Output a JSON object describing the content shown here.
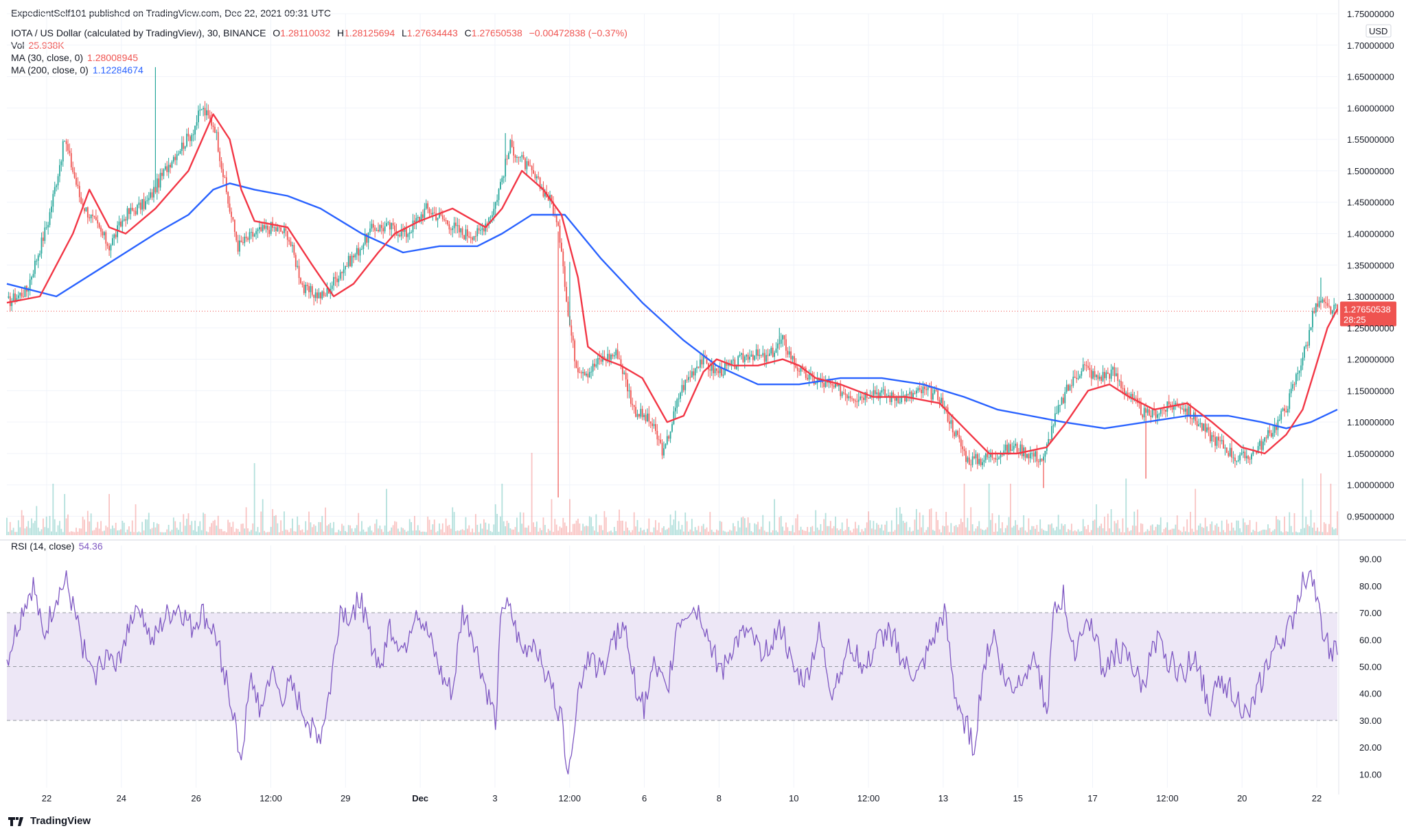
{
  "publisher": "ExpedientSelf101 published on TradingView.com, Dec 22, 2021 09:31 UTC",
  "symbol_line": {
    "name": "IOTA / US Dollar (calculated by TradingView), 30, BINANCE",
    "o_label": "O",
    "o": "1.28110032",
    "h_label": "H",
    "h": "1.28125694",
    "l_label": "L",
    "l": "1.27634443",
    "c_label": "C",
    "c": "1.27650538",
    "change": "−0.00472838 (−0.37%)"
  },
  "vol": {
    "label": "Vol",
    "value": "25.938K"
  },
  "ma30": {
    "label": "MA (30, close, 0)",
    "value": "1.28008945"
  },
  "ma200": {
    "label": "MA (200, close, 0)",
    "value": "1.12284674"
  },
  "rsi": {
    "label": "RSI (14, close)",
    "value": "54.36"
  },
  "currency": "USD",
  "last_price_tag": {
    "price": "1.27650538",
    "countdown": "28:25"
  },
  "footer_brand": "TradingView",
  "colors": {
    "up": "#26a69a",
    "down": "#ef5350",
    "ma30": "#f23645",
    "ma200": "#2962ff",
    "rsi": "#7e57c2",
    "rsi_band": "#ede7f6",
    "grid": "#f0f3fa"
  },
  "chart_data": [
    {
      "type": "candlestick",
      "title": "IOTA / US Dollar (calculated by TradingView), 30, BINANCE",
      "y_range": [
        0.92,
        1.75
      ],
      "y_ticks": [
        "0.95000000",
        "1.00000000",
        "1.05000000",
        "1.10000000",
        "1.15000000",
        "1.20000000",
        "1.25000000",
        "1.30000000",
        "1.35000000",
        "1.40000000",
        "1.45000000",
        "1.50000000",
        "1.55000000",
        "1.60000000",
        "1.65000000",
        "1.70000000",
        "1.75000000"
      ],
      "x_ticks": [
        "22",
        "24",
        "26",
        "12:00",
        "29",
        "Dec",
        "3",
        "12:00",
        "6",
        "8",
        "10",
        "12:00",
        "13",
        "15",
        "17",
        "12:00",
        "20",
        "22"
      ],
      "close_path": [
        [
          0,
          1.29
        ],
        [
          12,
          1.31
        ],
        [
          25,
          1.42
        ],
        [
          35,
          1.55
        ],
        [
          45,
          1.45
        ],
        [
          55,
          1.41
        ],
        [
          62,
          1.38
        ],
        [
          72,
          1.43
        ],
        [
          85,
          1.45
        ],
        [
          100,
          1.52
        ],
        [
          112,
          1.56
        ],
        [
          118,
          1.6
        ],
        [
          126,
          1.57
        ],
        [
          134,
          1.45
        ],
        [
          140,
          1.38
        ],
        [
          150,
          1.4
        ],
        [
          160,
          1.41
        ],
        [
          170,
          1.4
        ],
        [
          180,
          1.31
        ],
        [
          192,
          1.3
        ],
        [
          202,
          1.34
        ],
        [
          212,
          1.37
        ],
        [
          222,
          1.41
        ],
        [
          232,
          1.41
        ],
        [
          242,
          1.4
        ],
        [
          254,
          1.44
        ],
        [
          266,
          1.42
        ],
        [
          276,
          1.4
        ],
        [
          286,
          1.4
        ],
        [
          295,
          1.44
        ],
        [
          305,
          1.54
        ],
        [
          314,
          1.51
        ],
        [
          322,
          1.48
        ],
        [
          330,
          1.45
        ],
        [
          336,
          1.38
        ],
        [
          340,
          1.27
        ],
        [
          345,
          1.19
        ],
        [
          352,
          1.18
        ],
        [
          360,
          1.2
        ],
        [
          370,
          1.21
        ],
        [
          380,
          1.12
        ],
        [
          390,
          1.1
        ],
        [
          398,
          1.05
        ],
        [
          408,
          1.15
        ],
        [
          420,
          1.2
        ],
        [
          430,
          1.18
        ],
        [
          440,
          1.19
        ],
        [
          450,
          1.21
        ],
        [
          460,
          1.2
        ],
        [
          470,
          1.23
        ],
        [
          478,
          1.19
        ],
        [
          486,
          1.17
        ],
        [
          496,
          1.16
        ],
        [
          505,
          1.15
        ],
        [
          515,
          1.14
        ],
        [
          525,
          1.15
        ],
        [
          535,
          1.14
        ],
        [
          545,
          1.14
        ],
        [
          555,
          1.15
        ],
        [
          565,
          1.14
        ],
        [
          575,
          1.08
        ],
        [
          582,
          1.04
        ],
        [
          590,
          1.04
        ],
        [
          600,
          1.05
        ],
        [
          610,
          1.06
        ],
        [
          620,
          1.05
        ],
        [
          628,
          1.04
        ],
        [
          634,
          1.1
        ],
        [
          642,
          1.15
        ],
        [
          652,
          1.19
        ],
        [
          660,
          1.17
        ],
        [
          670,
          1.18
        ],
        [
          680,
          1.14
        ],
        [
          690,
          1.11
        ],
        [
          700,
          1.12
        ],
        [
          710,
          1.13
        ],
        [
          718,
          1.11
        ],
        [
          728,
          1.08
        ],
        [
          738,
          1.06
        ],
        [
          746,
          1.04
        ],
        [
          754,
          1.05
        ],
        [
          762,
          1.07
        ],
        [
          770,
          1.1
        ],
        [
          776,
          1.13
        ],
        [
          782,
          1.18
        ],
        [
          788,
          1.23
        ],
        [
          792,
          1.28
        ],
        [
          796,
          1.29
        ],
        [
          800,
          1.28
        ],
        [
          806,
          1.277
        ]
      ],
      "ma30_path": [
        [
          0,
          1.29
        ],
        [
          20,
          1.3
        ],
        [
          40,
          1.4
        ],
        [
          50,
          1.47
        ],
        [
          62,
          1.41
        ],
        [
          72,
          1.4
        ],
        [
          90,
          1.44
        ],
        [
          110,
          1.5
        ],
        [
          125,
          1.59
        ],
        [
          135,
          1.55
        ],
        [
          142,
          1.47
        ],
        [
          150,
          1.42
        ],
        [
          170,
          1.41
        ],
        [
          185,
          1.35
        ],
        [
          198,
          1.3
        ],
        [
          210,
          1.32
        ],
        [
          225,
          1.37
        ],
        [
          235,
          1.4
        ],
        [
          250,
          1.42
        ],
        [
          270,
          1.44
        ],
        [
          290,
          1.41
        ],
        [
          300,
          1.44
        ],
        [
          312,
          1.5
        ],
        [
          325,
          1.47
        ],
        [
          336,
          1.43
        ],
        [
          346,
          1.33
        ],
        [
          352,
          1.22
        ],
        [
          362,
          1.2
        ],
        [
          372,
          1.19
        ],
        [
          385,
          1.17
        ],
        [
          400,
          1.1
        ],
        [
          410,
          1.11
        ],
        [
          422,
          1.18
        ],
        [
          430,
          1.2
        ],
        [
          440,
          1.19
        ],
        [
          455,
          1.19
        ],
        [
          470,
          1.2
        ],
        [
          480,
          1.19
        ],
        [
          490,
          1.17
        ],
        [
          505,
          1.16
        ],
        [
          525,
          1.14
        ],
        [
          545,
          1.14
        ],
        [
          565,
          1.13
        ],
        [
          580,
          1.09
        ],
        [
          595,
          1.05
        ],
        [
          612,
          1.05
        ],
        [
          630,
          1.06
        ],
        [
          642,
          1.1
        ],
        [
          655,
          1.15
        ],
        [
          668,
          1.16
        ],
        [
          680,
          1.14
        ],
        [
          695,
          1.12
        ],
        [
          715,
          1.13
        ],
        [
          730,
          1.1
        ],
        [
          748,
          1.06
        ],
        [
          762,
          1.05
        ],
        [
          775,
          1.08
        ],
        [
          785,
          1.12
        ],
        [
          792,
          1.18
        ],
        [
          800,
          1.25
        ],
        [
          806,
          1.28
        ]
      ],
      "ma200_path": [
        [
          0,
          1.32
        ],
        [
          30,
          1.3
        ],
        [
          60,
          1.35
        ],
        [
          90,
          1.4
        ],
        [
          110,
          1.43
        ],
        [
          125,
          1.47
        ],
        [
          135,
          1.48
        ],
        [
          150,
          1.47
        ],
        [
          170,
          1.46
        ],
        [
          190,
          1.44
        ],
        [
          215,
          1.4
        ],
        [
          240,
          1.37
        ],
        [
          262,
          1.38
        ],
        [
          285,
          1.38
        ],
        [
          300,
          1.4
        ],
        [
          318,
          1.43
        ],
        [
          338,
          1.43
        ],
        [
          360,
          1.36
        ],
        [
          385,
          1.29
        ],
        [
          410,
          1.23
        ],
        [
          430,
          1.19
        ],
        [
          455,
          1.16
        ],
        [
          480,
          1.16
        ],
        [
          505,
          1.17
        ],
        [
          530,
          1.17
        ],
        [
          555,
          1.16
        ],
        [
          580,
          1.14
        ],
        [
          600,
          1.12
        ],
        [
          620,
          1.11
        ],
        [
          640,
          1.1
        ],
        [
          665,
          1.09
        ],
        [
          690,
          1.1
        ],
        [
          715,
          1.11
        ],
        [
          740,
          1.11
        ],
        [
          760,
          1.1
        ],
        [
          775,
          1.09
        ],
        [
          790,
          1.1
        ],
        [
          806,
          1.12
        ]
      ],
      "spikes": [
        [
          90,
          1.665
        ],
        [
          302,
          1.56
        ],
        [
          334,
          0.98
        ],
        [
          341,
          1.355
        ],
        [
          468,
          1.25
        ],
        [
          628,
          0.995
        ],
        [
          690,
          1.01
        ],
        [
          796,
          1.33
        ]
      ],
      "volume": {
        "spikes": [
          [
            28,
            0.5
          ],
          [
            35,
            0.4
          ],
          [
            62,
            0.4
          ],
          [
            78,
            0.3
          ],
          [
            150,
            0.7
          ],
          [
            155,
            0.35
          ],
          [
            230,
            0.45
          ],
          [
            296,
            0.3
          ],
          [
            300,
            0.5
          ],
          [
            318,
            0.8
          ],
          [
            330,
            0.35
          ],
          [
            341,
            0.35
          ],
          [
            465,
            0.35
          ],
          [
            580,
            0.5
          ],
          [
            595,
            0.5
          ],
          [
            608,
            0.5
          ],
          [
            660,
            0.3
          ],
          [
            678,
            0.55
          ],
          [
            720,
            0.45
          ],
          [
            785,
            0.55
          ],
          [
            796,
            0.6
          ],
          [
            802,
            0.5
          ]
        ]
      }
    },
    {
      "type": "line",
      "title": "RSI (14, close)",
      "y_range": [
        5,
        95
      ],
      "y_ticks": [
        "10.00",
        "20.00",
        "30.00",
        "40.00",
        "50.00",
        "60.00",
        "70.00",
        "80.00",
        "90.00"
      ],
      "bands": [
        30,
        50,
        70
      ],
      "last": 54.36,
      "points": [
        [
          0,
          52
        ],
        [
          10,
          72
        ],
        [
          16,
          80
        ],
        [
          22,
          60
        ],
        [
          30,
          76
        ],
        [
          36,
          81
        ],
        [
          44,
          62
        ],
        [
          52,
          45
        ],
        [
          60,
          55
        ],
        [
          66,
          48
        ],
        [
          72,
          62
        ],
        [
          80,
          75
        ],
        [
          88,
          58
        ],
        [
          96,
          68
        ],
        [
          104,
          72
        ],
        [
          112,
          64
        ],
        [
          118,
          70
        ],
        [
          126,
          62
        ],
        [
          132,
          48
        ],
        [
          138,
          30
        ],
        [
          142,
          16
        ],
        [
          148,
          45
        ],
        [
          154,
          34
        ],
        [
          160,
          48
        ],
        [
          166,
          38
        ],
        [
          172,
          42
        ],
        [
          178,
          35
        ],
        [
          184,
          28
        ],
        [
          190,
          24
        ],
        [
          196,
          42
        ],
        [
          202,
          72
        ],
        [
          208,
          68
        ],
        [
          214,
          76
        ],
        [
          220,
          60
        ],
        [
          226,
          50
        ],
        [
          232,
          65
        ],
        [
          240,
          56
        ],
        [
          248,
          72
        ],
        [
          256,
          60
        ],
        [
          264,
          45
        ],
        [
          270,
          40
        ],
        [
          276,
          70
        ],
        [
          282,
          62
        ],
        [
          290,
          42
        ],
        [
          296,
          30
        ],
        [
          300,
          74
        ],
        [
          306,
          68
        ],
        [
          312,
          55
        ],
        [
          320,
          60
        ],
        [
          330,
          42
        ],
        [
          336,
          30
        ],
        [
          340,
          12
        ],
        [
          346,
          40
        ],
        [
          352,
          55
        ],
        [
          360,
          48
        ],
        [
          368,
          60
        ],
        [
          374,
          65
        ],
        [
          380,
          45
        ],
        [
          386,
          35
        ],
        [
          392,
          50
        ],
        [
          400,
          40
        ],
        [
          406,
          66
        ],
        [
          414,
          72
        ],
        [
          420,
          70
        ],
        [
          428,
          55
        ],
        [
          434,
          48
        ],
        [
          440,
          58
        ],
        [
          448,
          62
        ],
        [
          456,
          56
        ],
        [
          464,
          60
        ],
        [
          470,
          64
        ],
        [
          476,
          48
        ],
        [
          484,
          45
        ],
        [
          492,
          62
        ],
        [
          500,
          40
        ],
        [
          506,
          52
        ],
        [
          512,
          58
        ],
        [
          520,
          48
        ],
        [
          528,
          60
        ],
        [
          536,
          62
        ],
        [
          544,
          50
        ],
        [
          552,
          46
        ],
        [
          560,
          58
        ],
        [
          568,
          70
        ],
        [
          574,
          40
        ],
        [
          580,
          30
        ],
        [
          586,
          20
        ],
        [
          592,
          52
        ],
        [
          598,
          62
        ],
        [
          604,
          45
        ],
        [
          610,
          42
        ],
        [
          618,
          50
        ],
        [
          624,
          54
        ],
        [
          630,
          30
        ],
        [
          634,
          68
        ],
        [
          640,
          76
        ],
        [
          646,
          55
        ],
        [
          652,
          65
        ],
        [
          658,
          66
        ],
        [
          664,
          48
        ],
        [
          672,
          56
        ],
        [
          680,
          52
        ],
        [
          688,
          42
        ],
        [
          696,
          60
        ],
        [
          704,
          52
        ],
        [
          712,
          47
        ],
        [
          720,
          55
        ],
        [
          728,
          35
        ],
        [
          736,
          45
        ],
        [
          744,
          40
        ],
        [
          752,
          30
        ],
        [
          760,
          45
        ],
        [
          766,
          54
        ],
        [
          772,
          60
        ],
        [
          778,
          65
        ],
        [
          784,
          80
        ],
        [
          790,
          88
        ],
        [
          794,
          72
        ],
        [
          800,
          58
        ],
        [
          806,
          54
        ]
      ]
    }
  ]
}
